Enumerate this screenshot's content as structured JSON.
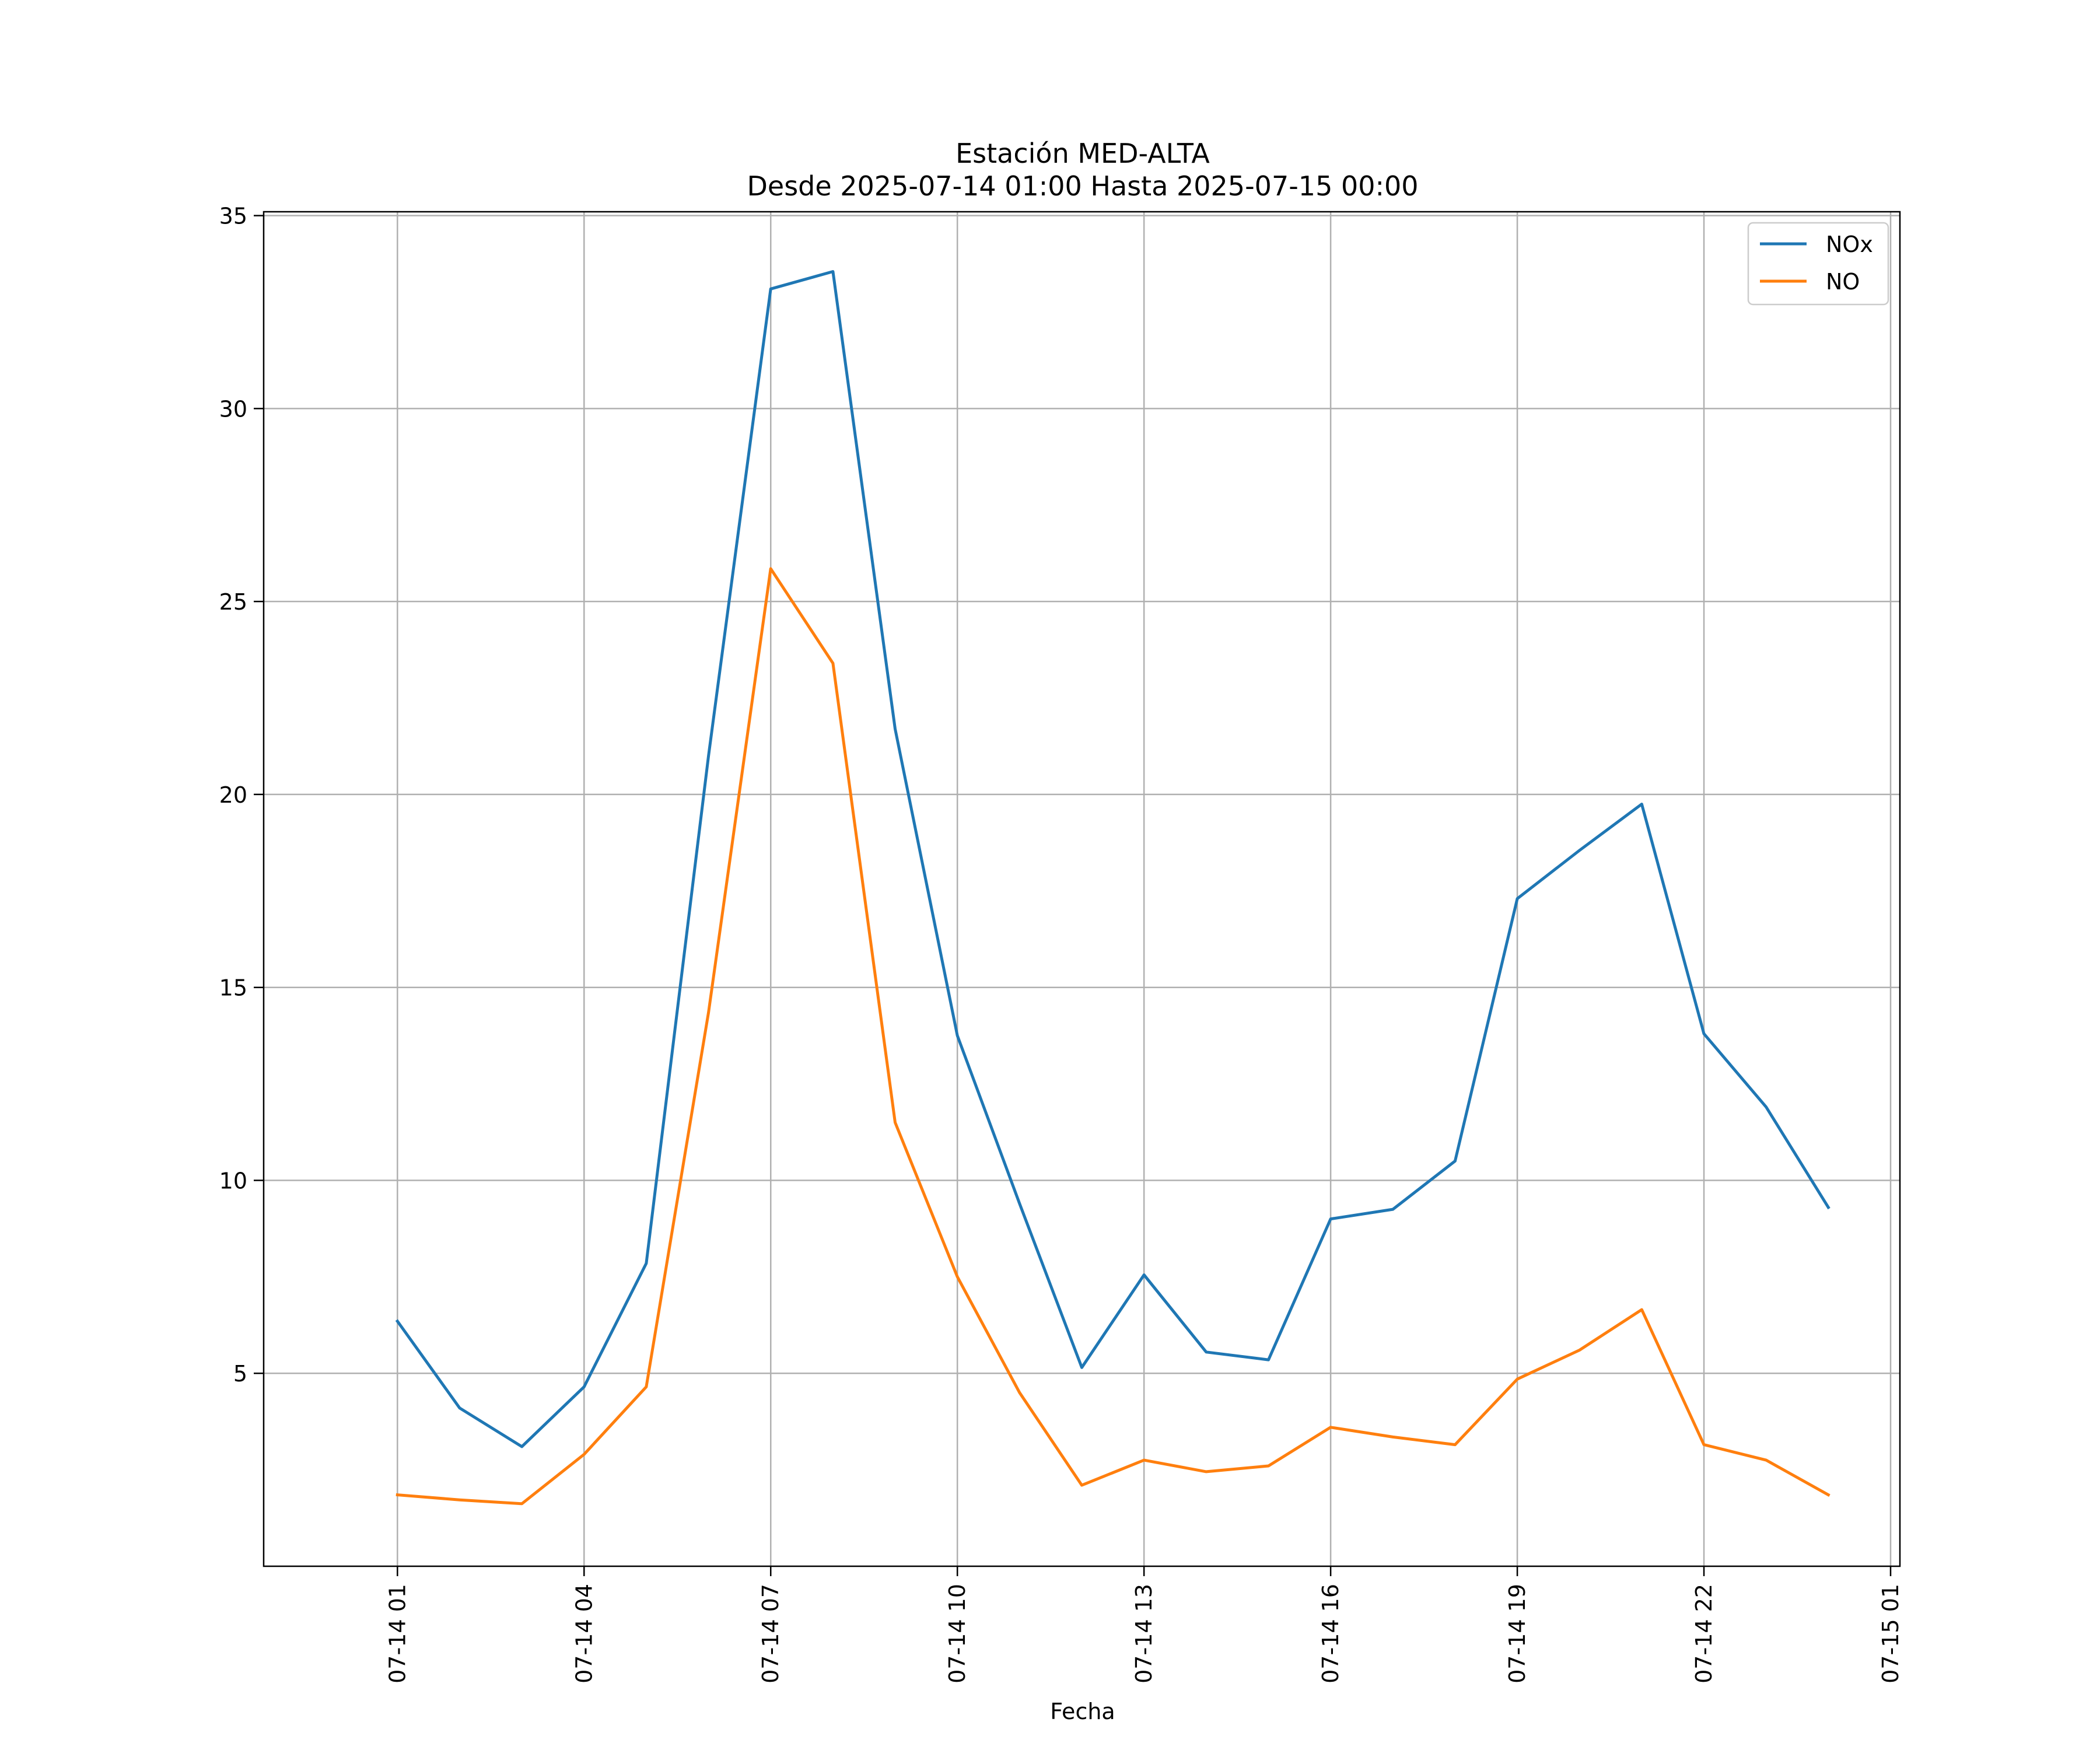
{
  "chart_data": {
    "type": "line",
    "title": [
      "Estación MED-ALTA",
      "Desde 2025-07-14 01:00 Hasta 2025-07-15 00:00"
    ],
    "xlabel": "Fecha",
    "ylabel": "",
    "x": [
      "2025-07-14 01:00",
      "2025-07-14 02:00",
      "2025-07-14 03:00",
      "2025-07-14 04:00",
      "2025-07-14 05:00",
      "2025-07-14 06:00",
      "2025-07-14 07:00",
      "2025-07-14 08:00",
      "2025-07-14 09:00",
      "2025-07-14 10:00",
      "2025-07-14 11:00",
      "2025-07-14 12:00",
      "2025-07-14 13:00",
      "2025-07-14 14:00",
      "2025-07-14 15:00",
      "2025-07-14 16:00",
      "2025-07-14 17:00",
      "2025-07-14 18:00",
      "2025-07-14 19:00",
      "2025-07-14 20:00",
      "2025-07-14 21:00",
      "2025-07-14 22:00",
      "2025-07-14 23:00",
      "2025-07-15 00:00"
    ],
    "series": [
      {
        "name": "NOx",
        "color": "#1f77b4",
        "values": [
          6.35,
          4.1,
          3.1,
          4.65,
          7.85,
          21.0,
          33.1,
          33.55,
          21.7,
          13.75,
          9.4,
          5.15,
          7.55,
          5.55,
          5.35,
          9.0,
          9.25,
          10.5,
          17.3,
          18.55,
          19.75,
          13.8,
          11.9,
          9.3
        ]
      },
      {
        "name": "NO",
        "color": "#ff7f0e",
        "values": [
          1.85,
          1.72,
          1.62,
          2.9,
          4.65,
          14.35,
          25.85,
          23.4,
          11.5,
          7.5,
          4.5,
          2.1,
          2.75,
          2.45,
          2.6,
          3.6,
          3.35,
          3.15,
          4.85,
          5.6,
          6.65,
          3.15,
          2.75,
          1.85
        ]
      }
    ],
    "xticks": [
      "07-14 01",
      "07-14 04",
      "07-14 07",
      "07-14 10",
      "07-14 13",
      "07-14 16",
      "07-14 19",
      "07-14 22",
      "07-15 01"
    ],
    "yticks": [
      5,
      10,
      15,
      20,
      25,
      30,
      35
    ],
    "xlim": [
      "2025-07-13 22:51",
      "2025-07-15 01:09"
    ],
    "ylim": [
      0.0,
      35.1
    ],
    "grid": true,
    "legend": "top-right"
  }
}
